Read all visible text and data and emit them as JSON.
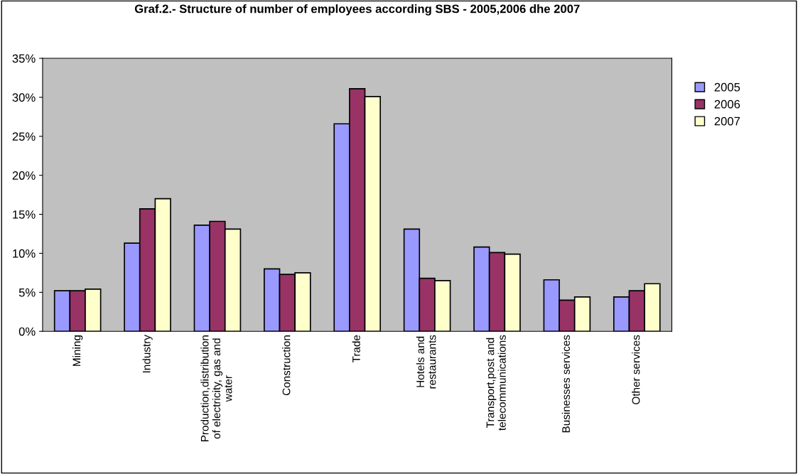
{
  "chart_data": {
    "type": "bar",
    "title": "Graf.2.- Structure of number of employees according SBS - 2005,2006 dhe 2007",
    "categories": [
      "Mining",
      "Industry",
      "Production,distribution\nof electricity, gas and\nwater",
      "Construction",
      "Trade",
      "Hotels and\nrestaurants",
      "Transport,post and\ntelecommunications",
      "Businesses services",
      "Other services"
    ],
    "series": [
      {
        "name": "2005",
        "color": "#9999ff",
        "values": [
          5.2,
          11.3,
          13.6,
          8.0,
          26.6,
          13.1,
          10.8,
          6.6,
          4.4
        ]
      },
      {
        "name": "2006",
        "color": "#993366",
        "values": [
          5.2,
          15.7,
          14.1,
          7.3,
          31.1,
          6.8,
          10.1,
          4.0,
          5.2
        ]
      },
      {
        "name": "2007",
        "color": "#ffffcc",
        "values": [
          5.4,
          17.0,
          13.1,
          7.5,
          30.1,
          6.5,
          9.9,
          4.4,
          6.1
        ]
      }
    ],
    "ylim": [
      0,
      35
    ],
    "yticks": [
      {
        "value": 0,
        "label": "0%"
      },
      {
        "value": 5,
        "label": "5%"
      },
      {
        "value": 10,
        "label": "10%"
      },
      {
        "value": 15,
        "label": "15%"
      },
      {
        "value": 20,
        "label": "20%"
      },
      {
        "value": 25,
        "label": "25%"
      },
      {
        "value": 30,
        "label": "30%"
      },
      {
        "value": 35,
        "label": "35%"
      }
    ],
    "grid": false,
    "legend": "right"
  }
}
